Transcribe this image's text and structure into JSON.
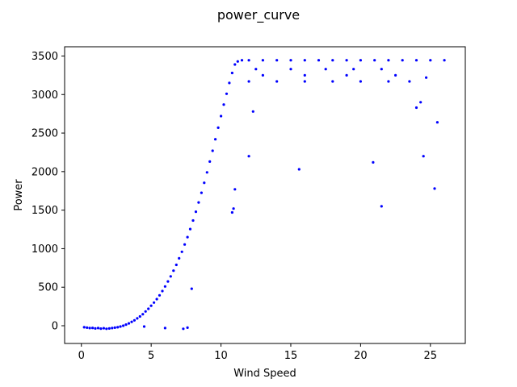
{
  "chart_data": {
    "type": "scatter",
    "title": "power_curve",
    "xlabel": "Wind Speed",
    "ylabel": "Power",
    "xlim": [
      -1.2,
      27.5
    ],
    "ylim": [
      -230,
      3620
    ],
    "xticks": [
      0,
      5,
      10,
      15,
      20,
      25
    ],
    "yticks": [
      0,
      500,
      1000,
      1500,
      2000,
      2500,
      3000,
      3500
    ],
    "grid": false,
    "legend": "none",
    "marker_color": "#0000ff",
    "series": [
      {
        "points": [
          [
            0.2,
            -20
          ],
          [
            0.4,
            -25
          ],
          [
            0.6,
            -30
          ],
          [
            0.8,
            -28
          ],
          [
            1.0,
            -35
          ],
          [
            1.2,
            -30
          ],
          [
            1.4,
            -38
          ],
          [
            1.6,
            -32
          ],
          [
            1.8,
            -40
          ],
          [
            2.0,
            -35
          ],
          [
            2.2,
            -30
          ],
          [
            2.4,
            -25
          ],
          [
            2.6,
            -20
          ],
          [
            2.8,
            -10
          ],
          [
            3.0,
            0
          ],
          [
            3.2,
            15
          ],
          [
            3.4,
            30
          ],
          [
            3.6,
            50
          ],
          [
            3.8,
            70
          ],
          [
            4.0,
            95
          ],
          [
            4.2,
            120
          ],
          [
            4.4,
            150
          ],
          [
            4.6,
            185
          ],
          [
            4.8,
            220
          ],
          [
            5.0,
            260
          ],
          [
            5.2,
            300
          ],
          [
            5.4,
            345
          ],
          [
            5.6,
            395
          ],
          [
            5.8,
            450
          ],
          [
            6.0,
            510
          ],
          [
            6.2,
            575
          ],
          [
            6.4,
            640
          ],
          [
            6.6,
            715
          ],
          [
            6.8,
            790
          ],
          [
            7.0,
            875
          ],
          [
            7.2,
            960
          ],
          [
            7.4,
            1055
          ],
          [
            7.6,
            1150
          ],
          [
            7.8,
            1255
          ],
          [
            8.0,
            1365
          ],
          [
            8.2,
            1480
          ],
          [
            8.4,
            1600
          ],
          [
            8.6,
            1725
          ],
          [
            8.8,
            1855
          ],
          [
            9.0,
            1990
          ],
          [
            9.2,
            2130
          ],
          [
            9.4,
            2270
          ],
          [
            9.6,
            2420
          ],
          [
            9.8,
            2570
          ],
          [
            10.0,
            2720
          ],
          [
            10.2,
            2870
          ],
          [
            10.4,
            3010
          ],
          [
            10.6,
            3150
          ],
          [
            10.8,
            3280
          ],
          [
            11.0,
            3390
          ],
          [
            11.2,
            3430
          ],
          [
            11.5,
            3445
          ],
          [
            12.0,
            3445
          ],
          [
            13.0,
            3445
          ],
          [
            14.0,
            3445
          ],
          [
            15.0,
            3445
          ],
          [
            16.0,
            3445
          ],
          [
            17.0,
            3445
          ],
          [
            18.0,
            3445
          ],
          [
            19.0,
            3445
          ],
          [
            20.0,
            3445
          ],
          [
            21.0,
            3445
          ],
          [
            22.0,
            3445
          ],
          [
            23.0,
            3445
          ],
          [
            24.0,
            3445
          ],
          [
            25.0,
            3445
          ],
          [
            26.0,
            3445
          ],
          [
            12.0,
            3170
          ],
          [
            14.0,
            3170
          ],
          [
            16.0,
            3170
          ],
          [
            18.0,
            3170
          ],
          [
            20.0,
            3170
          ],
          [
            22.0,
            3170
          ],
          [
            23.5,
            3170
          ],
          [
            12.5,
            3330
          ],
          [
            15.0,
            3330
          ],
          [
            17.5,
            3330
          ],
          [
            19.5,
            3330
          ],
          [
            21.5,
            3330
          ],
          [
            13.0,
            3250
          ],
          [
            16.0,
            3250
          ],
          [
            19.0,
            3250
          ],
          [
            22.5,
            3250
          ],
          [
            12.3,
            2780
          ],
          [
            12.0,
            2200
          ],
          [
            11.0,
            1770
          ],
          [
            10.8,
            1470
          ],
          [
            10.9,
            1520
          ],
          [
            15.6,
            2030
          ],
          [
            20.9,
            2120
          ],
          [
            21.5,
            1550
          ],
          [
            24.5,
            2200
          ],
          [
            25.3,
            1780
          ],
          [
            25.5,
            2640
          ],
          [
            24.0,
            2830
          ],
          [
            24.3,
            2900
          ],
          [
            24.7,
            3220
          ],
          [
            7.9,
            480
          ],
          [
            7.6,
            -25
          ],
          [
            7.3,
            -40
          ],
          [
            6.0,
            -30
          ],
          [
            4.5,
            -10
          ]
        ]
      }
    ]
  }
}
